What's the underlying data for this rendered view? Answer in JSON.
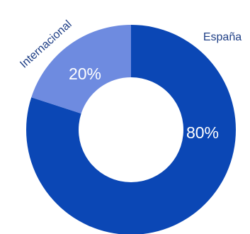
{
  "chart_data": {
    "type": "pie",
    "variant": "donut",
    "categories": [
      "España",
      "Internacional"
    ],
    "values": [
      80,
      20
    ],
    "value_labels": [
      "80%",
      "20%"
    ],
    "colors": [
      "#0b47b5",
      "#6e8be0"
    ],
    "category_label_color": "#1f3f86",
    "legend": "none"
  }
}
